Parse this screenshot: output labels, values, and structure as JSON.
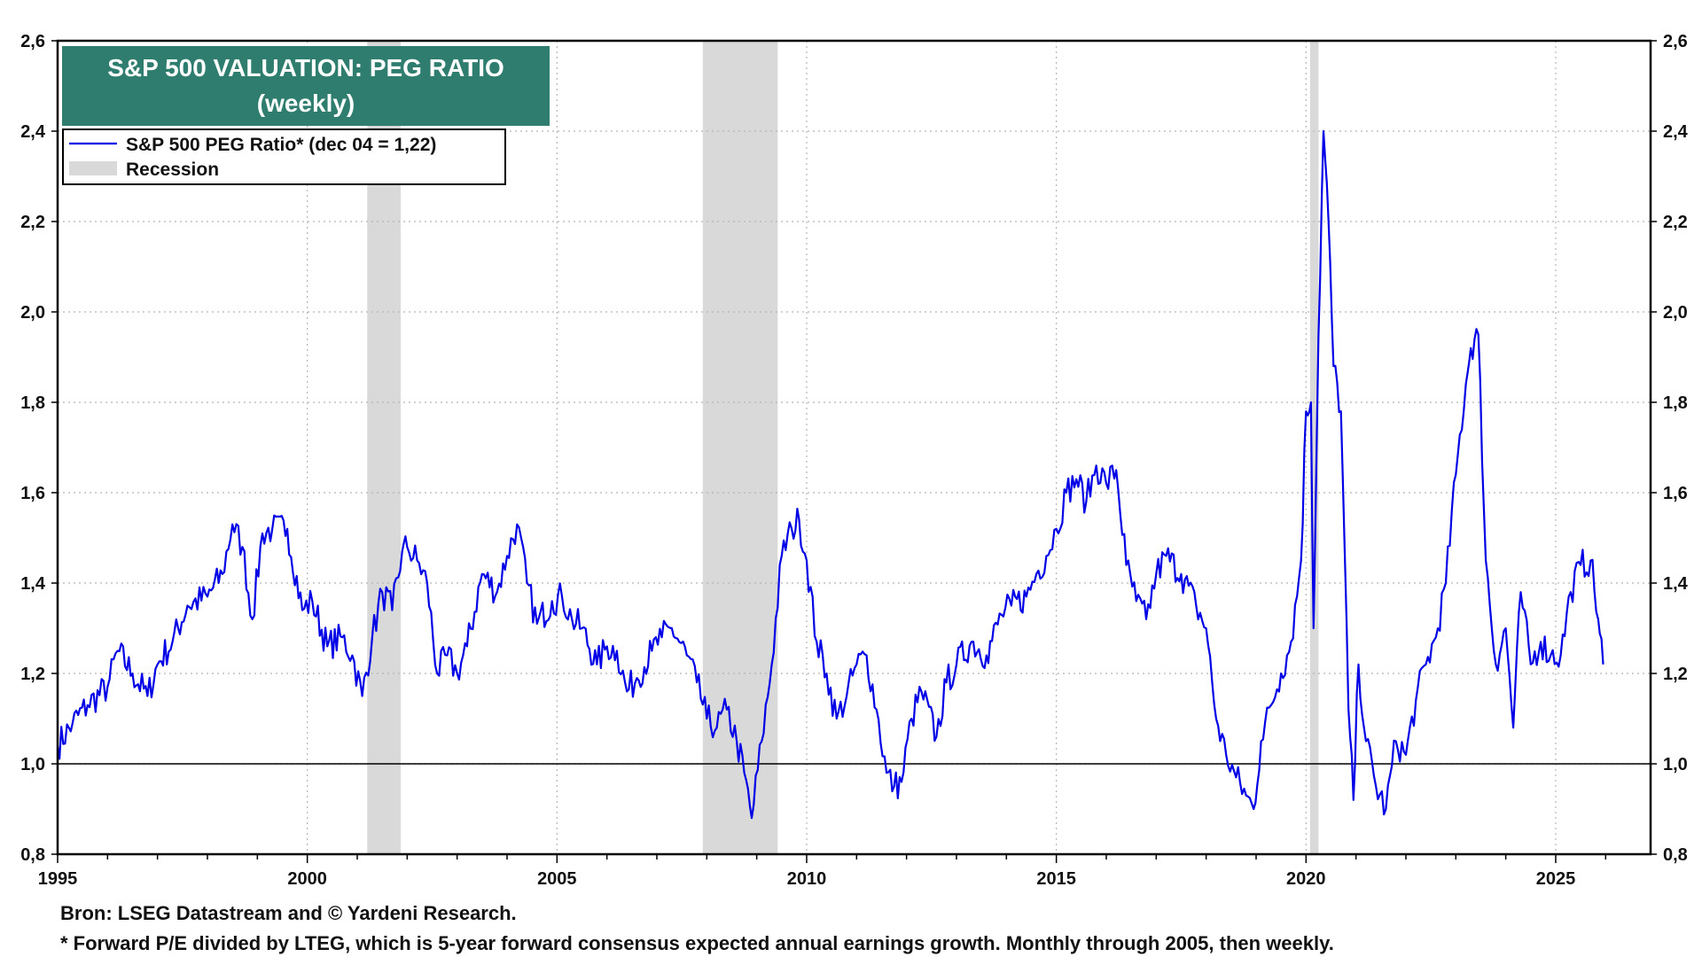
{
  "title_line1": "S&P 500 VALUATION: PEG RATIO",
  "title_line2": "(weekly)",
  "colors": {
    "title_bg": "#2E7D6E",
    "series": "#0000E6",
    "recession": "#D9D9D9"
  },
  "source": "Bron: LSEG Datastream and © Yardeni Research.",
  "footnote": "* Forward P/E divided by LTEG, which is 5-year forward consensus expected annual earnings growth. Monthly through 2005, then weekly.",
  "chart_data": {
    "type": "line",
    "title": "S&P 500 VALUATION: PEG RATIO",
    "subtitle": "(weekly)",
    "xlim": [
      1995,
      2026.9
    ],
    "ylim": [
      0.8,
      2.6
    ],
    "x_ticks": [
      "1995",
      "2000",
      "2005",
      "2010",
      "2015",
      "2020",
      "2025"
    ],
    "y_ticks": [
      "0,8",
      "1,0",
      "1,2",
      "1,4",
      "1,6",
      "1,8",
      "2,0",
      "2,2",
      "2,4",
      "2,6"
    ],
    "reference_line": 1.0,
    "grid": true,
    "legend_position": "top-left",
    "legend": [
      "S&P 500 PEG Ratio* (dec 04 = 1,22)",
      "Recession"
    ],
    "recessions": [
      [
        2001.2,
        2001.87
      ],
      [
        2007.92,
        2009.42
      ],
      [
        2020.08,
        2020.25
      ]
    ],
    "series": [
      {
        "name": "S&P 500 PEG Ratio* (dec 04 = 1,22)",
        "x": [
          1995.0,
          1995.3,
          1995.6,
          1996.0,
          1996.2,
          1996.5,
          1996.8,
          1997.0,
          1997.3,
          1997.6,
          1998.0,
          1998.3,
          1998.5,
          1998.7,
          1998.9,
          1999.1,
          1999.3,
          1999.6,
          1999.9,
          2000.1,
          2000.4,
          2000.7,
          2000.9,
          2001.1,
          2001.3,
          2001.5,
          2001.7,
          2001.9,
          2002.0,
          2002.2,
          2002.4,
          2002.6,
          2002.8,
          2003.0,
          2003.2,
          2003.5,
          2003.8,
          2004.0,
          2004.2,
          2004.4,
          2004.6,
          2004.9,
          2005.1,
          2005.3,
          2005.5,
          2005.8,
          2006.0,
          2006.2,
          2006.4,
          2006.6,
          2006.9,
          2007.1,
          2007.3,
          2007.6,
          2007.8,
          2008.0,
          2008.2,
          2008.4,
          2008.6,
          2008.75,
          2008.9,
          2009.1,
          2009.3,
          2009.5,
          2009.7,
          2009.85,
          2010.0,
          2010.2,
          2010.4,
          2010.6,
          2010.8,
          2011.0,
          2011.2,
          2011.4,
          2011.6,
          2011.75,
          2011.9,
          2012.1,
          2012.3,
          2012.6,
          2012.8,
          2013.0,
          2013.3,
          2013.6,
          2013.9,
          2014.1,
          2014.4,
          2014.6,
          2014.8,
          2015.0,
          2015.2,
          2015.4,
          2015.6,
          2015.8,
          2016.0,
          2016.2,
          2016.4,
          2016.6,
          2016.8,
          2017.0,
          2017.2,
          2017.5,
          2017.8,
          2018.0,
          2018.2,
          2018.4,
          2018.6,
          2018.8,
          2018.95,
          2019.1,
          2019.3,
          2019.5,
          2019.7,
          2019.9,
          2020.0,
          2020.1,
          2020.15,
          2020.25,
          2020.35,
          2020.45,
          2020.55,
          2020.7,
          2020.85,
          2020.95,
          2021.05,
          2021.2,
          2021.4,
          2021.6,
          2021.8,
          2022.0,
          2022.2,
          2022.4,
          2022.6,
          2022.8,
          2023.0,
          2023.2,
          2023.3,
          2023.45,
          2023.6,
          2023.8,
          2024.0,
          2024.15,
          2024.3,
          2024.5,
          2024.7,
          2024.9,
          2025.1,
          2025.3,
          2025.5,
          2025.7,
          2025.85,
          2025.95
        ],
        "values": [
          1.04,
          1.09,
          1.13,
          1.17,
          1.25,
          1.2,
          1.15,
          1.22,
          1.27,
          1.35,
          1.37,
          1.42,
          1.53,
          1.48,
          1.32,
          1.51,
          1.52,
          1.52,
          1.34,
          1.36,
          1.26,
          1.28,
          1.24,
          1.15,
          1.28,
          1.38,
          1.34,
          1.47,
          1.48,
          1.45,
          1.4,
          1.2,
          1.24,
          1.2,
          1.26,
          1.42,
          1.38,
          1.46,
          1.53,
          1.4,
          1.31,
          1.36,
          1.37,
          1.32,
          1.3,
          1.22,
          1.26,
          1.25,
          1.16,
          1.19,
          1.25,
          1.28,
          1.3,
          1.24,
          1.18,
          1.1,
          1.08,
          1.12,
          1.05,
          0.98,
          0.88,
          1.05,
          1.22,
          1.46,
          1.52,
          1.54,
          1.45,
          1.27,
          1.2,
          1.1,
          1.15,
          1.22,
          1.24,
          1.12,
          0.98,
          0.95,
          0.96,
          1.1,
          1.16,
          1.06,
          1.18,
          1.22,
          1.27,
          1.24,
          1.33,
          1.35,
          1.37,
          1.42,
          1.46,
          1.52,
          1.6,
          1.63,
          1.58,
          1.66,
          1.62,
          1.65,
          1.44,
          1.36,
          1.32,
          1.42,
          1.46,
          1.42,
          1.35,
          1.3,
          1.1,
          1.02,
          0.97,
          0.93,
          0.9,
          1.05,
          1.13,
          1.2,
          1.27,
          1.45,
          1.78,
          1.8,
          1.3,
          1.95,
          2.4,
          2.2,
          1.88,
          1.78,
          1.12,
          0.92,
          1.22,
          1.05,
          0.95,
          0.9,
          1.05,
          1.02,
          1.14,
          1.22,
          1.28,
          1.4,
          1.64,
          1.84,
          1.92,
          1.95,
          1.45,
          1.22,
          1.3,
          1.08,
          1.38,
          1.22,
          1.27,
          1.24,
          1.24,
          1.38,
          1.44,
          1.45,
          1.32,
          1.22
        ]
      }
    ]
  }
}
